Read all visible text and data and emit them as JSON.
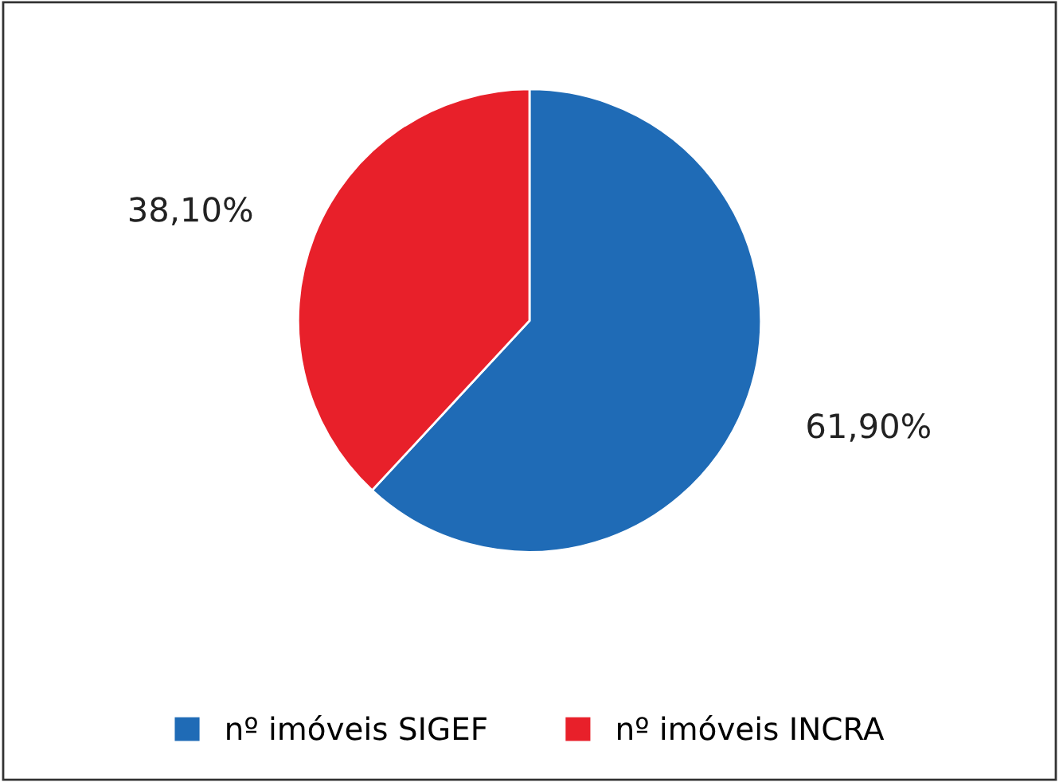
{
  "chart_data": {
    "type": "pie",
    "categories": [
      "nº imóveis SIGEF",
      "nº imóveis INCRA"
    ],
    "values": [
      61.9,
      38.1
    ],
    "colors": [
      "#1f6bb6",
      "#e8202a"
    ],
    "value_labels": [
      "61,90%",
      "38,10%"
    ],
    "legend": "bottom"
  }
}
